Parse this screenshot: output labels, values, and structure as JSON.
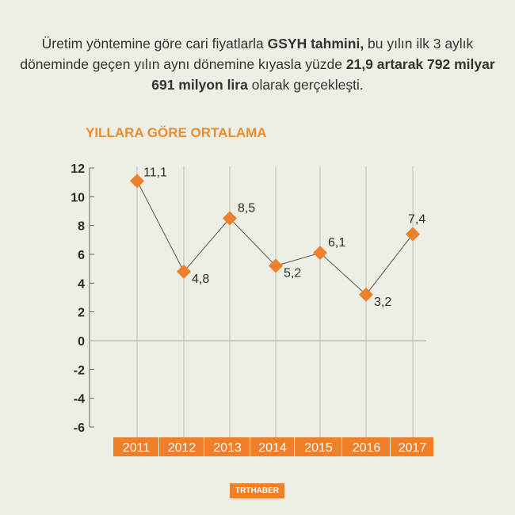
{
  "intro": [
    {
      "text": "Üretim yöntemine göre cari fiyatlarla ",
      "bold": false
    },
    {
      "text": "GSYH tahmini,",
      "bold": true
    },
    {
      "text": " bu yılın ilk 3 aylık döneminde geçen yılın aynı dönemine kıyasla yüzde ",
      "bold": false
    },
    {
      "text": "21,9 artarak 792 milyar 691 milyon lira",
      "bold": true
    },
    {
      "text": " olarak gerçekleşti.",
      "bold": false
    }
  ],
  "logo": "TRTHABER",
  "colors": {
    "accent": "#f07f2a",
    "background": "#eeefe4",
    "line": "#555555"
  },
  "chart_data": {
    "type": "line",
    "title": "YILLARA GÖRE ORTALAMA",
    "categories": [
      "2011",
      "2012",
      "2013",
      "2014",
      "2015",
      "2016",
      "2017"
    ],
    "values": [
      11.1,
      4.8,
      8.5,
      5.2,
      6.1,
      3.2,
      7.4
    ],
    "data_labels": [
      "11,1",
      "4,8",
      "8,5",
      "5,2",
      "6,1",
      "3,2",
      "7,4"
    ],
    "yticks": [
      12,
      10,
      8,
      6,
      4,
      2,
      0,
      -2,
      -4,
      -6
    ],
    "ylim": [
      -6,
      12
    ],
    "marker": "diamond",
    "grid": "vertical drop lines"
  }
}
